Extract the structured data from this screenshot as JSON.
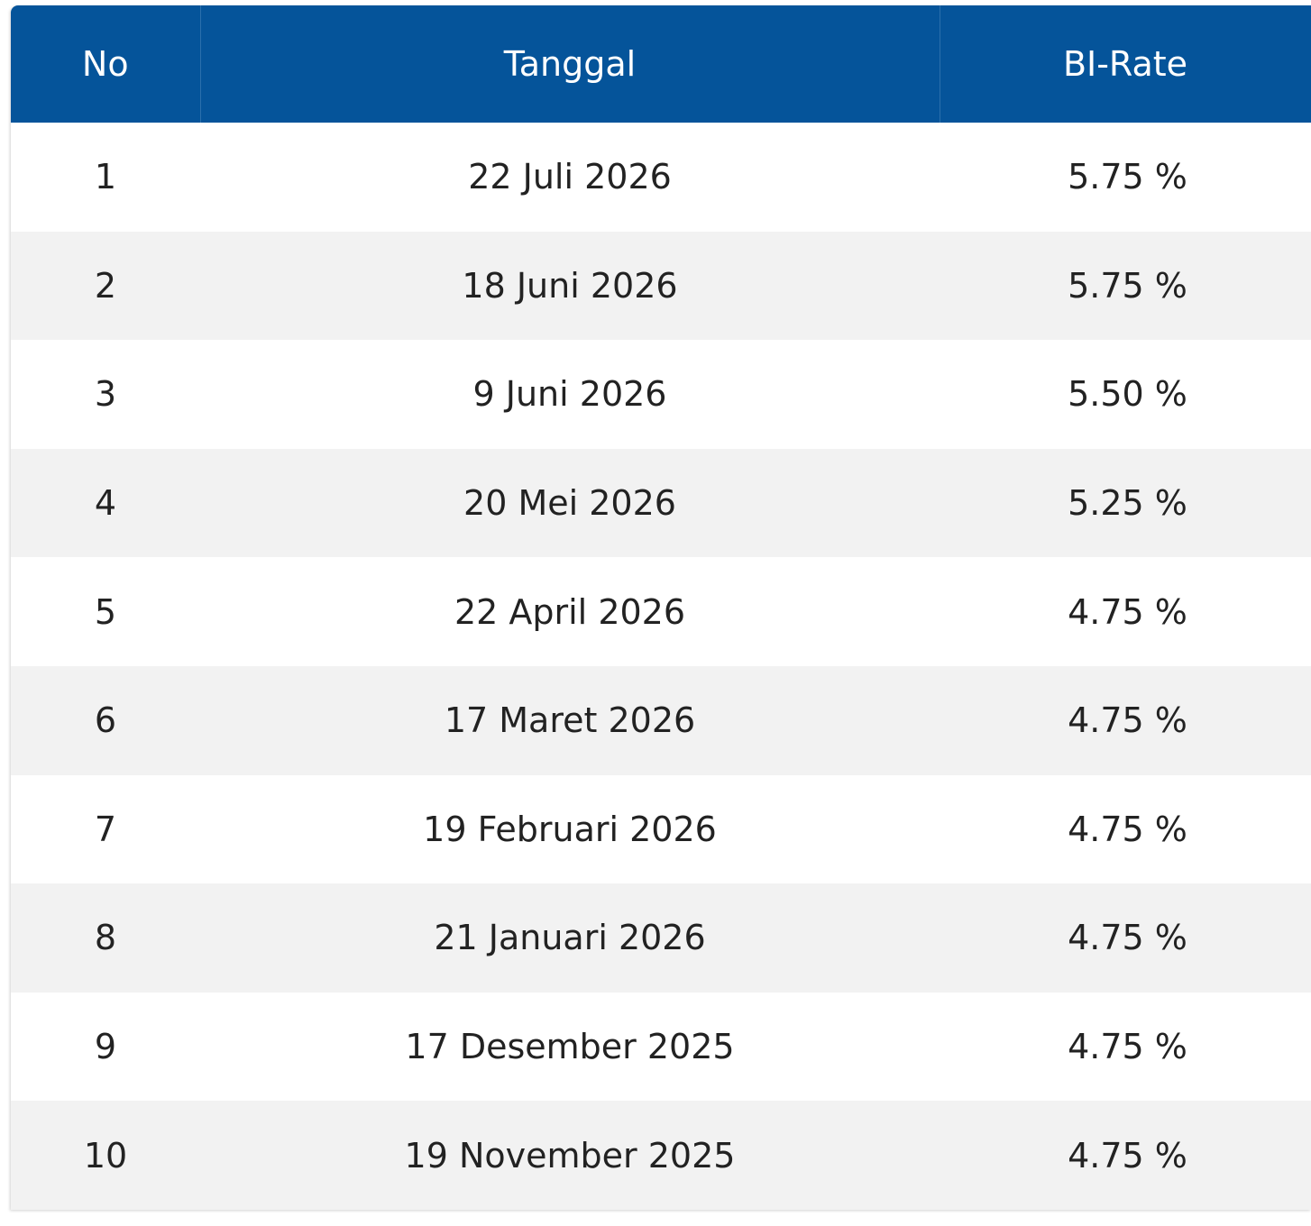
{
  "table": {
    "headers": {
      "no": "No",
      "tanggal": "Tanggal",
      "bi_rate": "BI-Rate"
    },
    "rows": [
      {
        "no": "1",
        "tanggal": "22 Juli 2026",
        "bi_rate": "5.75 %"
      },
      {
        "no": "2",
        "tanggal": "18 Juni 2026",
        "bi_rate": "5.75 %"
      },
      {
        "no": "3",
        "tanggal": "9 Juni 2026",
        "bi_rate": "5.50 %"
      },
      {
        "no": "4",
        "tanggal": "20 Mei 2026",
        "bi_rate": "5.25 %"
      },
      {
        "no": "5",
        "tanggal": "22 April 2026",
        "bi_rate": "4.75 %"
      },
      {
        "no": "6",
        "tanggal": "17 Maret 2026",
        "bi_rate": "4.75 %"
      },
      {
        "no": "7",
        "tanggal": "19 Februari 2026",
        "bi_rate": "4.75 %"
      },
      {
        "no": "8",
        "tanggal": "21 Januari 2026",
        "bi_rate": "4.75 %"
      },
      {
        "no": "9",
        "tanggal": "17 Desember 2025",
        "bi_rate": "4.75 %"
      },
      {
        "no": "10",
        "tanggal": "19 November 2025",
        "bi_rate": "4.75 %"
      }
    ]
  },
  "colors": {
    "header_bg": "#05549a",
    "header_text": "#ffffff",
    "row_alt_bg": "#f2f2f2",
    "row_bg": "#ffffff",
    "cell_text": "#222222"
  }
}
